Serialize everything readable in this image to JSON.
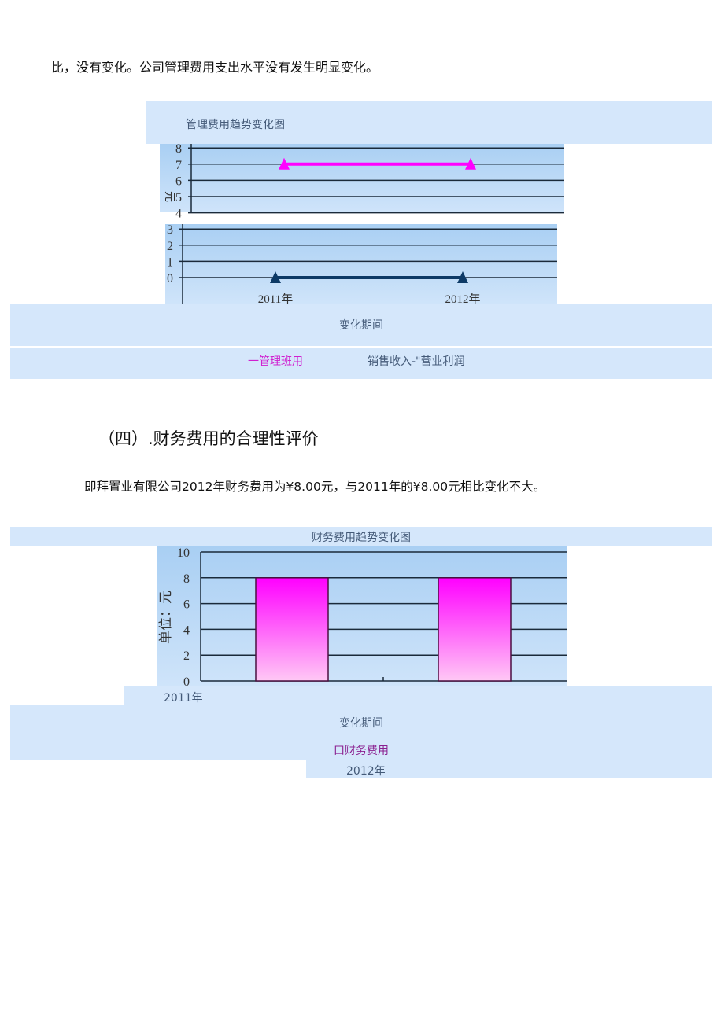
{
  "intro_text": "比，没有变化。公司管理费用支出水平没有发生明显变化。",
  "section_heading": "（四）.财务费用的合理性评价",
  "paragraph": "即拜置业有限公司2012年财务费用为¥8.00元，与2011年的¥8.00元相比变化不大。",
  "chart1_band": {
    "title": "管理费用趋势变化图",
    "xlabel": "变化期间",
    "legend": [
      "一管理班用",
      "销售收入-\"营业利润"
    ]
  },
  "chart2_band": {
    "title": "财务费用趋势变化图",
    "xlabel": "变化期间",
    "legend": "口财务费用",
    "stray_2011": "2011年",
    "stray_2012": "2012年"
  },
  "chart_data": [
    {
      "type": "line",
      "title": "管理费用趋势变化图",
      "xlabel": "变化期间",
      "categories": [
        "2011年",
        "2012年"
      ],
      "series": [
        {
          "values": [
            7,
            7
          ],
          "color": "#ff00ff",
          "marker": "triangle"
        },
        {
          "values": [
            0,
            0
          ],
          "color": "#0d3a66",
          "marker": "triangle"
        }
      ],
      "legend": [
        "一管理班用",
        "销售收入-\"营业利润"
      ],
      "yticks": [
        "0",
        "1",
        "2",
        "3",
        "4",
        "5",
        "6",
        "7",
        "8"
      ],
      "ylim": [
        0,
        8
      ],
      "grid": true,
      "background": "#b8d8f5"
    },
    {
      "type": "bar",
      "title": "财务费用趋势变化图",
      "xlabel": "变化期间",
      "ylabel": "单位：元",
      "categories": [
        "2011年",
        "2012年"
      ],
      "values": [
        8,
        8
      ],
      "yticks": [
        "0",
        "2",
        "4",
        "6",
        "8",
        "10"
      ],
      "ylim": [
        0,
        10
      ],
      "grid": true,
      "bar_color": "#ff00ff",
      "legend": "口财务费用"
    }
  ]
}
